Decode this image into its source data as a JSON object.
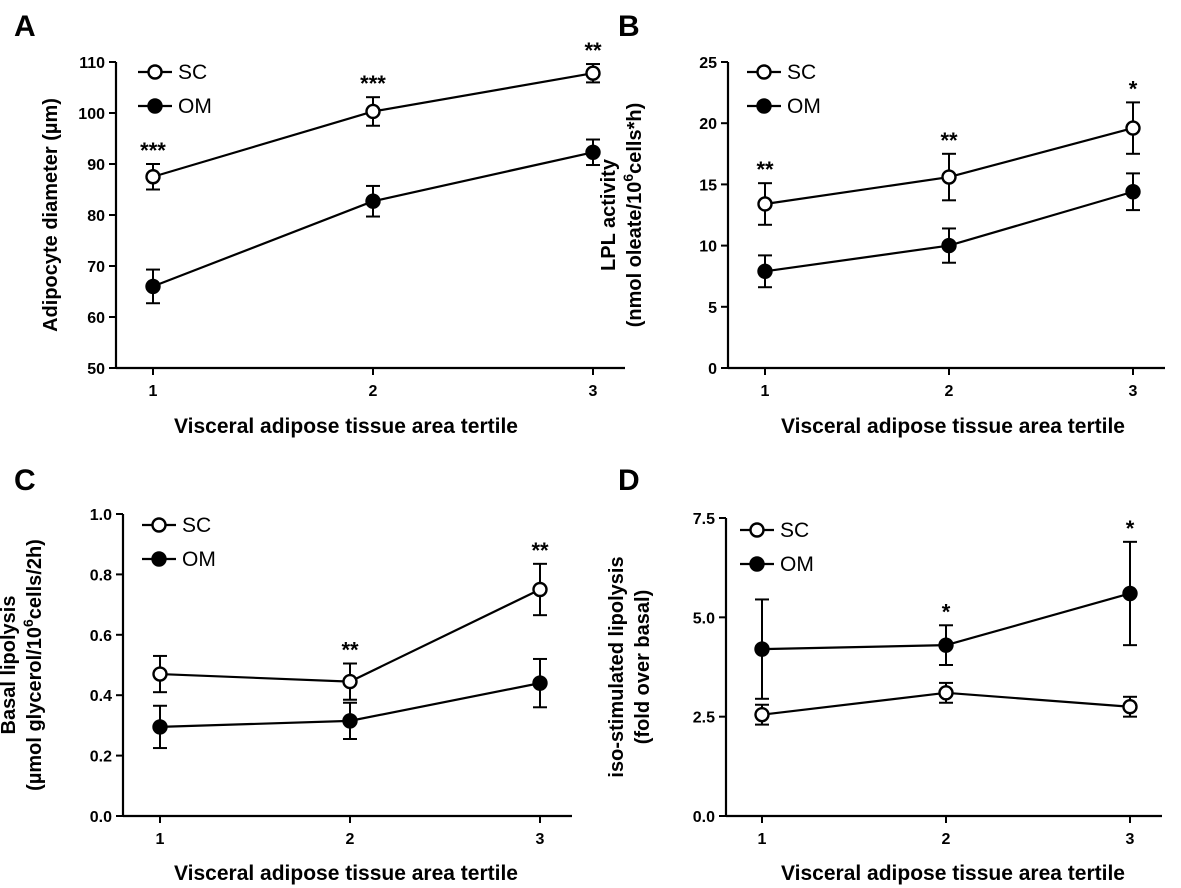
{
  "chart_data": [
    {
      "type": "line",
      "panel": "A",
      "xlabel": "Visceral adipose tissue area tertile",
      "ylabel": [
        "Adipocyte diameter (µm)"
      ],
      "x": [
        1,
        2,
        3
      ],
      "xticks": [
        "1",
        "2",
        "3"
      ],
      "ylim": [
        50,
        110
      ],
      "yticks": [
        50,
        60,
        70,
        80,
        90,
        100,
        110
      ],
      "ytick_labels": [
        "50",
        "60",
        "70",
        "80",
        "90",
        "100",
        "110"
      ],
      "legend_position": "top-left",
      "series": [
        {
          "name": "SC",
          "marker": "open-circle",
          "values": [
            87.5,
            100.3,
            107.8
          ],
          "err": [
            2.5,
            2.8,
            1.8
          ]
        },
        {
          "name": "OM",
          "marker": "filled-circle",
          "values": [
            66.0,
            82.7,
            92.3
          ],
          "err": [
            3.3,
            3.0,
            2.5
          ]
        }
      ],
      "significance": [
        "***",
        "***",
        "**"
      ]
    },
    {
      "type": "line",
      "panel": "B",
      "xlabel": "Visceral adipose tissue area tertile",
      "ylabel": [
        "LPL activity",
        "(nmol oleate/10^6cells*h)"
      ],
      "x": [
        1,
        2,
        3
      ],
      "xticks": [
        "1",
        "2",
        "3"
      ],
      "ylim": [
        0,
        25
      ],
      "yticks": [
        0,
        5,
        10,
        15,
        20,
        25
      ],
      "ytick_labels": [
        "0",
        "5",
        "10",
        "15",
        "20",
        "25"
      ],
      "legend_position": "top-left",
      "series": [
        {
          "name": "SC",
          "marker": "open-circle",
          "values": [
            13.4,
            15.6,
            19.6
          ],
          "err": [
            1.7,
            1.9,
            2.1
          ]
        },
        {
          "name": "OM",
          "marker": "filled-circle",
          "values": [
            7.9,
            10.0,
            14.4
          ],
          "err": [
            1.3,
            1.4,
            1.5
          ]
        }
      ],
      "significance": [
        "**",
        "**",
        "*"
      ]
    },
    {
      "type": "line",
      "panel": "C",
      "xlabel": "Visceral adipose tissue area tertile",
      "ylabel": [
        "Basal lipolysis",
        "(µmol glycerol/10^6cells/2h)"
      ],
      "x": [
        1,
        2,
        3
      ],
      "xticks": [
        "1",
        "2",
        "3"
      ],
      "ylim": [
        0.0,
        1.0
      ],
      "yticks": [
        0.0,
        0.2,
        0.4,
        0.6,
        0.8,
        1.0
      ],
      "ytick_labels": [
        "0.0",
        "0.2",
        "0.4",
        "0.6",
        "0.8",
        "1.0"
      ],
      "legend_position": "top-left",
      "series": [
        {
          "name": "SC",
          "marker": "open-circle",
          "values": [
            0.47,
            0.445,
            0.75
          ],
          "err": [
            0.06,
            0.06,
            0.085
          ]
        },
        {
          "name": "OM",
          "marker": "filled-circle",
          "values": [
            0.295,
            0.315,
            0.44
          ],
          "err": [
            0.07,
            0.06,
            0.08
          ]
        }
      ],
      "significance": [
        "",
        "**",
        "**"
      ]
    },
    {
      "type": "line",
      "panel": "D",
      "xlabel": "Visceral adipose tissue area tertile",
      "ylabel": [
        "iso-stimulated lipolysis",
        "(fold over basal)"
      ],
      "x": [
        1,
        2,
        3
      ],
      "xticks": [
        "1",
        "2",
        "3"
      ],
      "ylim": [
        0.0,
        7.5
      ],
      "yticks": [
        0.0,
        2.5,
        5.0,
        7.5
      ],
      "ytick_labels": [
        "0.0",
        "2.5",
        "5.0",
        "7.5"
      ],
      "legend_position": "top-left",
      "series": [
        {
          "name": "SC",
          "marker": "open-circle",
          "values": [
            2.55,
            3.1,
            2.75
          ],
          "err": [
            0.25,
            0.25,
            0.25
          ]
        },
        {
          "name": "OM",
          "marker": "filled-circle",
          "values": [
            4.2,
            4.3,
            5.6
          ],
          "err": [
            1.25,
            0.5,
            1.3
          ]
        }
      ],
      "significance": [
        "",
        "*",
        "*"
      ]
    }
  ]
}
